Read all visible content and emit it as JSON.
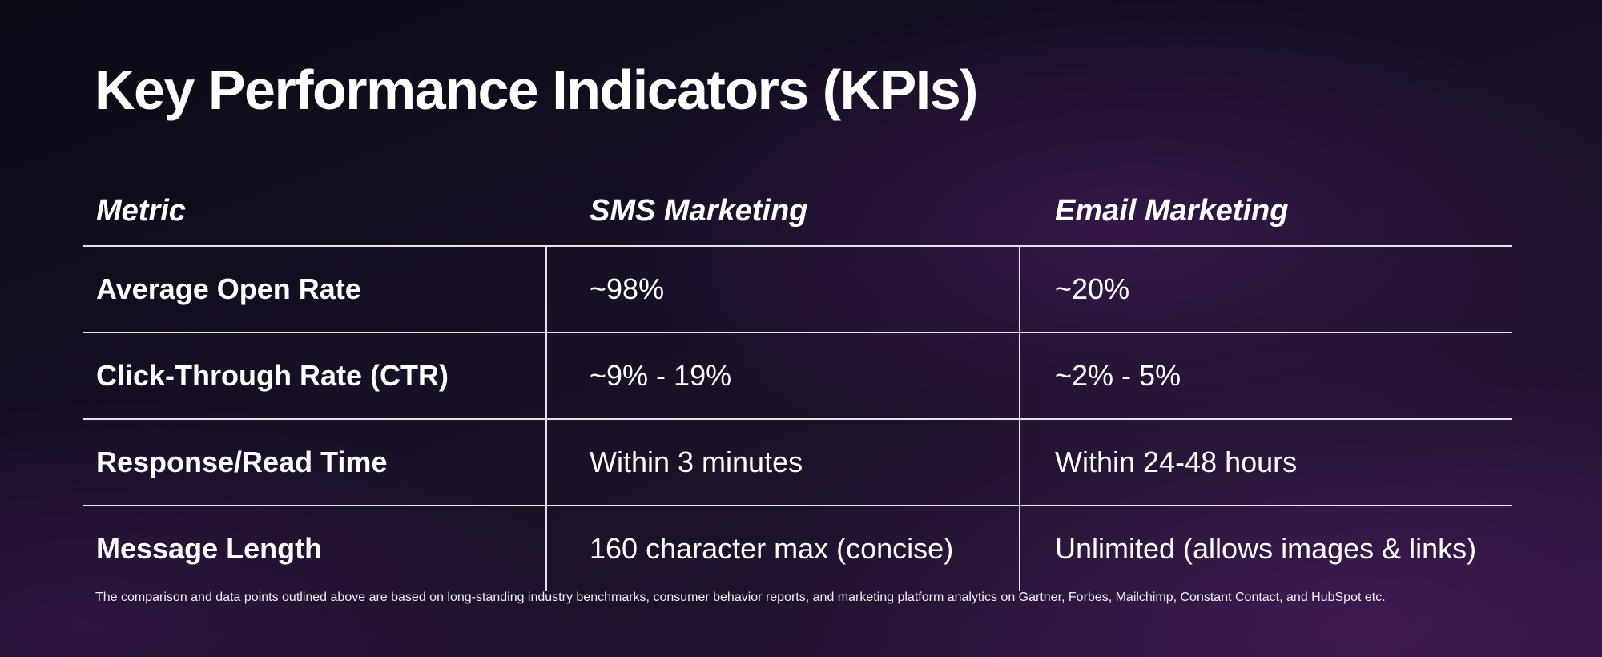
{
  "slide": {
    "title": "Key Performance Indicators (KPIs)",
    "footnote": "The comparison and data points outlined above are based on long-standing industry benchmarks, consumer behavior reports, and marketing platform analytics on Gartner, Forbes, Mailchimp, Constant Contact, and HubSpot etc."
  },
  "table": {
    "headers": [
      "Metric",
      "SMS Marketing",
      "Email Marketing"
    ],
    "rows": [
      [
        "Average Open Rate",
        "~98%",
        "~20%"
      ],
      [
        "Click-Through Rate (CTR)",
        "~9% - 19%",
        "~2% - 5%"
      ],
      [
        "Response/Read Time",
        "Within 3 minutes",
        "Within 24-48 hours"
      ],
      [
        "Message Length",
        "160 character max (concise)",
        "Unlimited (allows images & links)"
      ]
    ]
  },
  "colors": {
    "background_dark": "#0b0a14",
    "background_purple": "#2a153a",
    "text": "#ffffff",
    "rule": "#e6e2ec"
  }
}
